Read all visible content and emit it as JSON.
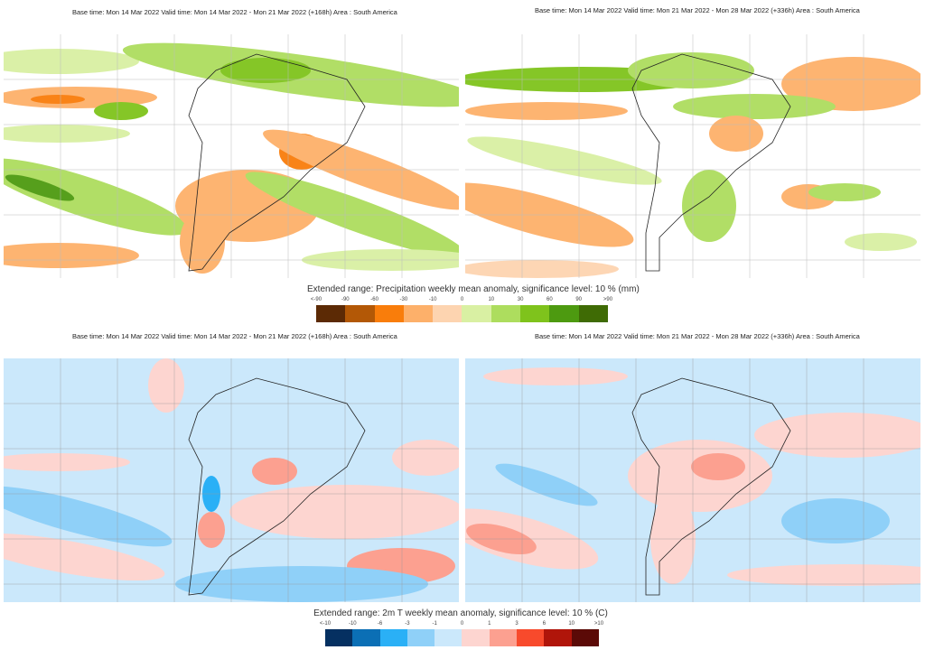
{
  "panels": {
    "precip_left_header": "Base time: Mon 14 Mar 2022 Valid time: Mon 14 Mar 2022 - Mon 21 Mar 2022 (+168h) Area : South America",
    "precip_right_header": "Base time: Mon 14 Mar 2022 Valid time: Mon 21 Mar 2022 - Mon 28 Mar 2022 (+336h) Area : South America",
    "temp_left_header": "Base time: Mon 14 Mar 2022 Valid time: Mon 14 Mar 2022 - Mon 21 Mar 2022 (+168h) Area : South America",
    "temp_right_header": "Base time: Mon 14 Mar 2022 Valid time: Mon 21 Mar 2022 - Mon 28 Mar 2022 (+336h) Area : South America"
  },
  "precip_legend": {
    "title": "Extended range: Precipitation weekly mean anomaly, significance level: 10 % (mm)",
    "ticks": [
      "<-90",
      "-90",
      "-60",
      "-30",
      "-10",
      "0",
      "10",
      "30",
      "60",
      "90",
      ">90"
    ],
    "colors": [
      "#5c2a05",
      "#b35806",
      "#f97d0b",
      "#fdb06a",
      "#fdd4b0",
      "#d9f0a3",
      "#addd5e",
      "#7fc31c",
      "#4d9a10",
      "#3f6b05"
    ]
  },
  "temp_legend": {
    "title": "Extended range: 2m T weekly mean anomaly, significance level: 10 % (C)",
    "ticks": [
      "<-10",
      "-10",
      "-6",
      "-3",
      "-1",
      "0",
      "1",
      "3",
      "6",
      "10",
      ">10"
    ],
    "colors": [
      "#053061",
      "#0b6fb5",
      "#2ab0f6",
      "#8fd0f8",
      "#cbe8fb",
      "#fdd5d0",
      "#fca090",
      "#f84a2c",
      "#b0150a",
      "#5b0a07"
    ]
  }
}
